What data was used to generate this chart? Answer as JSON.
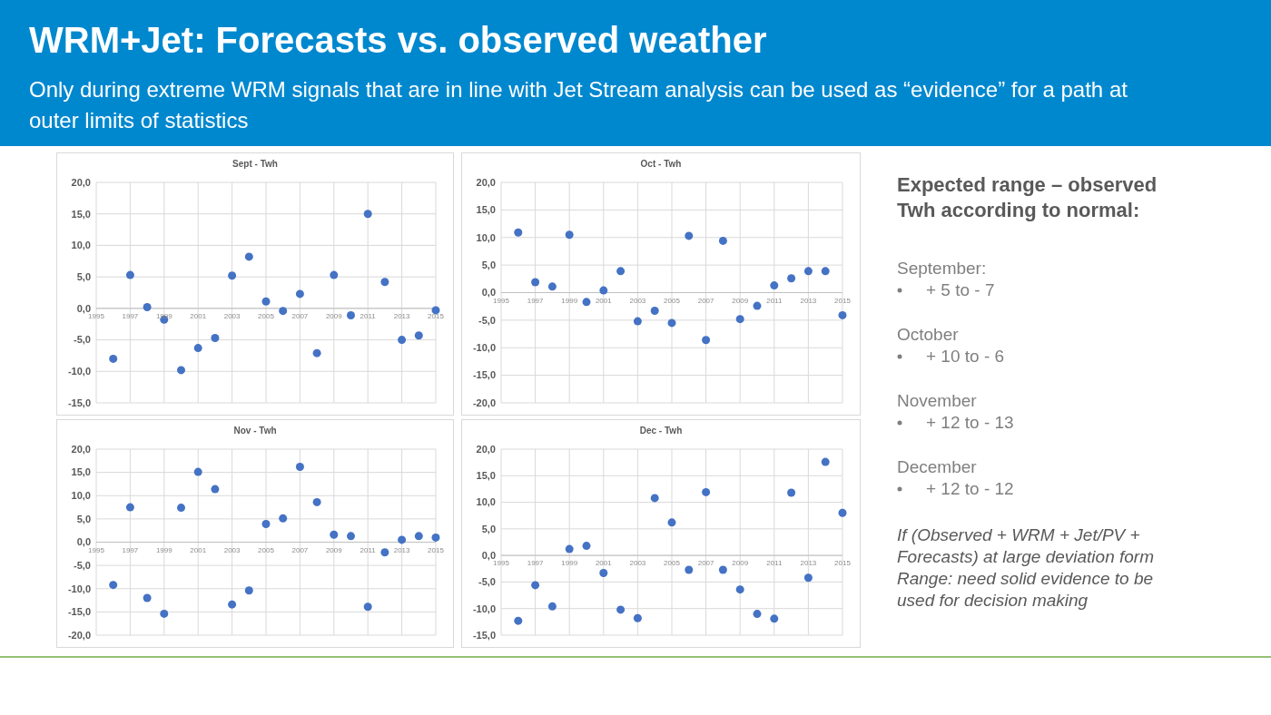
{
  "chart_data": [
    {
      "type": "other",
      "title": "WRM+Jet: Forecasts vs. observed weather",
      "subtitle": "Only during extreme WRM signals that are in line with Jet Stream analysis can be used as “evidence” for a path at outer limits of statistics"
    },
    {
      "type": "scatter",
      "title": "Sept - Twh",
      "x": [
        1996,
        1997,
        1998,
        1999,
        2000,
        2001,
        2002,
        2003,
        2004,
        2005,
        2006,
        2007,
        2008,
        2009,
        2010,
        2011,
        2012,
        2013,
        2014,
        2015
      ],
      "series": [
        {
          "color": "#4472c4",
          "values": [
            -8.0,
            5.3,
            0.2,
            -1.8,
            -9.8,
            -6.3,
            -4.7,
            5.2,
            8.2,
            1.1,
            -0.4,
            2.3,
            -7.1,
            5.3,
            -1.1,
            15.0,
            4.2,
            -5.0,
            -4.3,
            -0.3
          ]
        }
      ],
      "xlim": [
        1995,
        2015
      ],
      "xticks": [
        1995,
        1997,
        1999,
        2001,
        2003,
        2005,
        2007,
        2009,
        2011,
        2013,
        2015
      ],
      "ylim": [
        -15,
        20
      ],
      "yticks": [
        {
          "value": -15,
          "label": "-15,0"
        },
        {
          "value": -10,
          "label": "-10,0"
        },
        {
          "value": -5,
          "label": "-5,0"
        },
        {
          "value": 0,
          "label": "0,0"
        },
        {
          "value": 5,
          "label": "5,0"
        },
        {
          "value": 10,
          "label": "10,0"
        },
        {
          "value": 15,
          "label": "15,0"
        },
        {
          "value": 20,
          "label": "20,0"
        }
      ],
      "grid": true,
      "marker": "circle"
    },
    {
      "type": "scatter",
      "title": "Oct - Twh",
      "x": [
        1996,
        1997,
        1998,
        1999,
        2000,
        2001,
        2002,
        2003,
        2004,
        2005,
        2006,
        2007,
        2008,
        2009,
        2010,
        2011,
        2012,
        2013,
        2014,
        2015
      ],
      "series": [
        {
          "color": "#4472c4",
          "values": [
            10.9,
            1.9,
            1.1,
            10.5,
            -1.7,
            0.4,
            3.9,
            -5.2,
            -3.3,
            -5.5,
            10.3,
            -8.6,
            9.4,
            -4.8,
            -2.4,
            1.3,
            2.6,
            3.9,
            3.9,
            -4.1
          ]
        }
      ],
      "xlim": [
        1995,
        2015
      ],
      "xticks": [
        1995,
        1997,
        1999,
        2001,
        2003,
        2005,
        2007,
        2009,
        2011,
        2013,
        2015
      ],
      "ylim": [
        -20,
        20
      ],
      "yticks": [
        {
          "value": -20,
          "label": "-20,0"
        },
        {
          "value": -15,
          "label": "-15,0"
        },
        {
          "value": -10,
          "label": "-10,0"
        },
        {
          "value": -5,
          "label": "-5,0"
        },
        {
          "value": 0,
          "label": "0,0"
        },
        {
          "value": 5,
          "label": "5,0"
        },
        {
          "value": 10,
          "label": "10,0"
        },
        {
          "value": 15,
          "label": "15,0"
        },
        {
          "value": 20,
          "label": "20,0"
        }
      ],
      "grid": true,
      "marker": "circle"
    },
    {
      "type": "scatter",
      "title": "Nov - Twh",
      "x": [
        1996,
        1997,
        1998,
        1999,
        2000,
        2001,
        2002,
        2003,
        2004,
        2005,
        2006,
        2007,
        2008,
        2009,
        2010,
        2011,
        2012,
        2013,
        2014,
        2015
      ],
      "series": [
        {
          "color": "#4472c4",
          "values": [
            -9.2,
            7.5,
            -12.0,
            -15.4,
            7.4,
            15.1,
            11.4,
            -13.4,
            -10.4,
            3.9,
            5.1,
            16.2,
            8.6,
            1.6,
            1.3,
            -13.9,
            -2.2,
            0.5,
            1.3,
            1.0
          ]
        }
      ],
      "xlim": [
        1995,
        2015
      ],
      "xticks": [
        1995,
        1997,
        1999,
        2001,
        2003,
        2005,
        2007,
        2009,
        2011,
        2013,
        2015
      ],
      "ylim": [
        -20,
        20
      ],
      "yticks": [
        {
          "value": -20,
          "label": "-20,0"
        },
        {
          "value": -15,
          "label": "-15,0"
        },
        {
          "value": -10,
          "label": "-10,0"
        },
        {
          "value": -5,
          "label": "-5,0"
        },
        {
          "value": 0,
          "label": "0,0"
        },
        {
          "value": 5,
          "label": "5,0"
        },
        {
          "value": 10,
          "label": "10,0"
        },
        {
          "value": 15,
          "label": "15,0"
        },
        {
          "value": 20,
          "label": "20,0"
        }
      ],
      "grid": true,
      "marker": "circle"
    },
    {
      "type": "scatter",
      "title": "Dec - Twh",
      "x": [
        1996,
        1997,
        1998,
        1999,
        2000,
        2001,
        2002,
        2003,
        2004,
        2005,
        2006,
        2007,
        2008,
        2009,
        2010,
        2011,
        2012,
        2013,
        2014,
        2015
      ],
      "series": [
        {
          "color": "#4472c4",
          "values": [
            -12.3,
            -5.6,
            -9.6,
            1.2,
            1.8,
            -3.3,
            -10.2,
            -11.8,
            10.8,
            6.2,
            -2.7,
            11.9,
            -2.7,
            -6.4,
            -11.0,
            -11.9,
            11.8,
            -4.2,
            17.6,
            8.0
          ]
        }
      ],
      "xlim": [
        1995,
        2015
      ],
      "xticks": [
        1995,
        1997,
        1999,
        2001,
        2003,
        2005,
        2007,
        2009,
        2011,
        2013,
        2015
      ],
      "ylim": [
        -15,
        20
      ],
      "yticks": [
        {
          "value": -15,
          "label": "-15,0"
        },
        {
          "value": -10,
          "label": "-10,0"
        },
        {
          "value": -5,
          "label": "-5,0"
        },
        {
          "value": 0,
          "label": "0,0"
        },
        {
          "value": 5,
          "label": "5,0"
        },
        {
          "value": 10,
          "label": "10,0"
        },
        {
          "value": 15,
          "label": "15,0"
        },
        {
          "value": 20,
          "label": "20,0"
        }
      ],
      "grid": true,
      "marker": "circle"
    },
    {
      "type": "other",
      "title": "Expected range – observed Twh according to normal:",
      "annotations": [
        "September:",
        "+ 5 to - 7",
        "October",
        "+ 10 to - 6",
        "November",
        "+ 12 to - 13",
        "December",
        "+ 12 to - 12",
        "If (Observed + WRM + Jet/PV + Forecasts) at large deviation form Range: need solid evidence to be used for decision making"
      ]
    }
  ]
}
